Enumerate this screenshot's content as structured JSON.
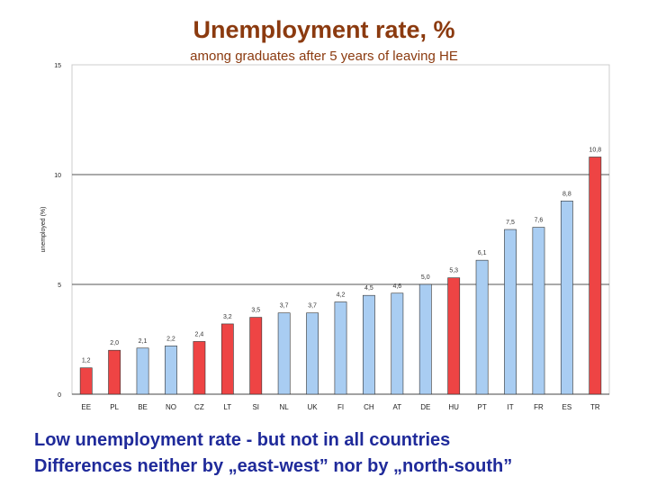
{
  "slide": {
    "title": "Unemployment rate, %",
    "subtitle": "among graduates after 5 years of leaving HE",
    "caption_line1": "Low unemployment rate - but not in all countries",
    "caption_line2": "Differences neither by „east-west” nor by „north-south”"
  },
  "colors": {
    "highlight_bar": "#ee4444",
    "normal_bar": "#a9cdf2",
    "bar_stroke": "#333333",
    "title": "#8b3a0f",
    "caption": "#1f2a9a"
  },
  "chart_data": {
    "type": "bar",
    "title": "Unemployment rate, %",
    "subtitle": "among graduates after 5 years of leaving HE",
    "xlabel": "",
    "ylabel": "unemployed (%)",
    "ylim": [
      0,
      15
    ],
    "yticks": [
      0,
      5,
      10,
      15
    ],
    "grid": "horizontal at 5 and 10",
    "categories": [
      "EE",
      "PL",
      "BE",
      "NO",
      "CZ",
      "LT",
      "SI",
      "NL",
      "UK",
      "FI",
      "CH",
      "AT",
      "DE",
      "HU",
      "PT",
      "IT",
      "FR",
      "ES",
      "TR"
    ],
    "values": [
      1.2,
      2.0,
      2.1,
      2.2,
      2.4,
      3.2,
      3.5,
      3.7,
      3.7,
      4.2,
      4.5,
      4.6,
      5.0,
      5.3,
      6.1,
      7.5,
      7.6,
      8.8,
      10.8
    ],
    "value_labels": [
      "1,2",
      "2,0",
      "2,1",
      "2,2",
      "2,4",
      "3,2",
      "3,5",
      "3,7",
      "3,7",
      "4,2",
      "4,5",
      "4,6",
      "5,0",
      "5,3",
      "6,1",
      "7,5",
      "7,6",
      "8,8",
      "10,8"
    ],
    "highlighted": [
      "EE",
      "PL",
      "CZ",
      "LT",
      "SI",
      "HU",
      "TR"
    ]
  }
}
